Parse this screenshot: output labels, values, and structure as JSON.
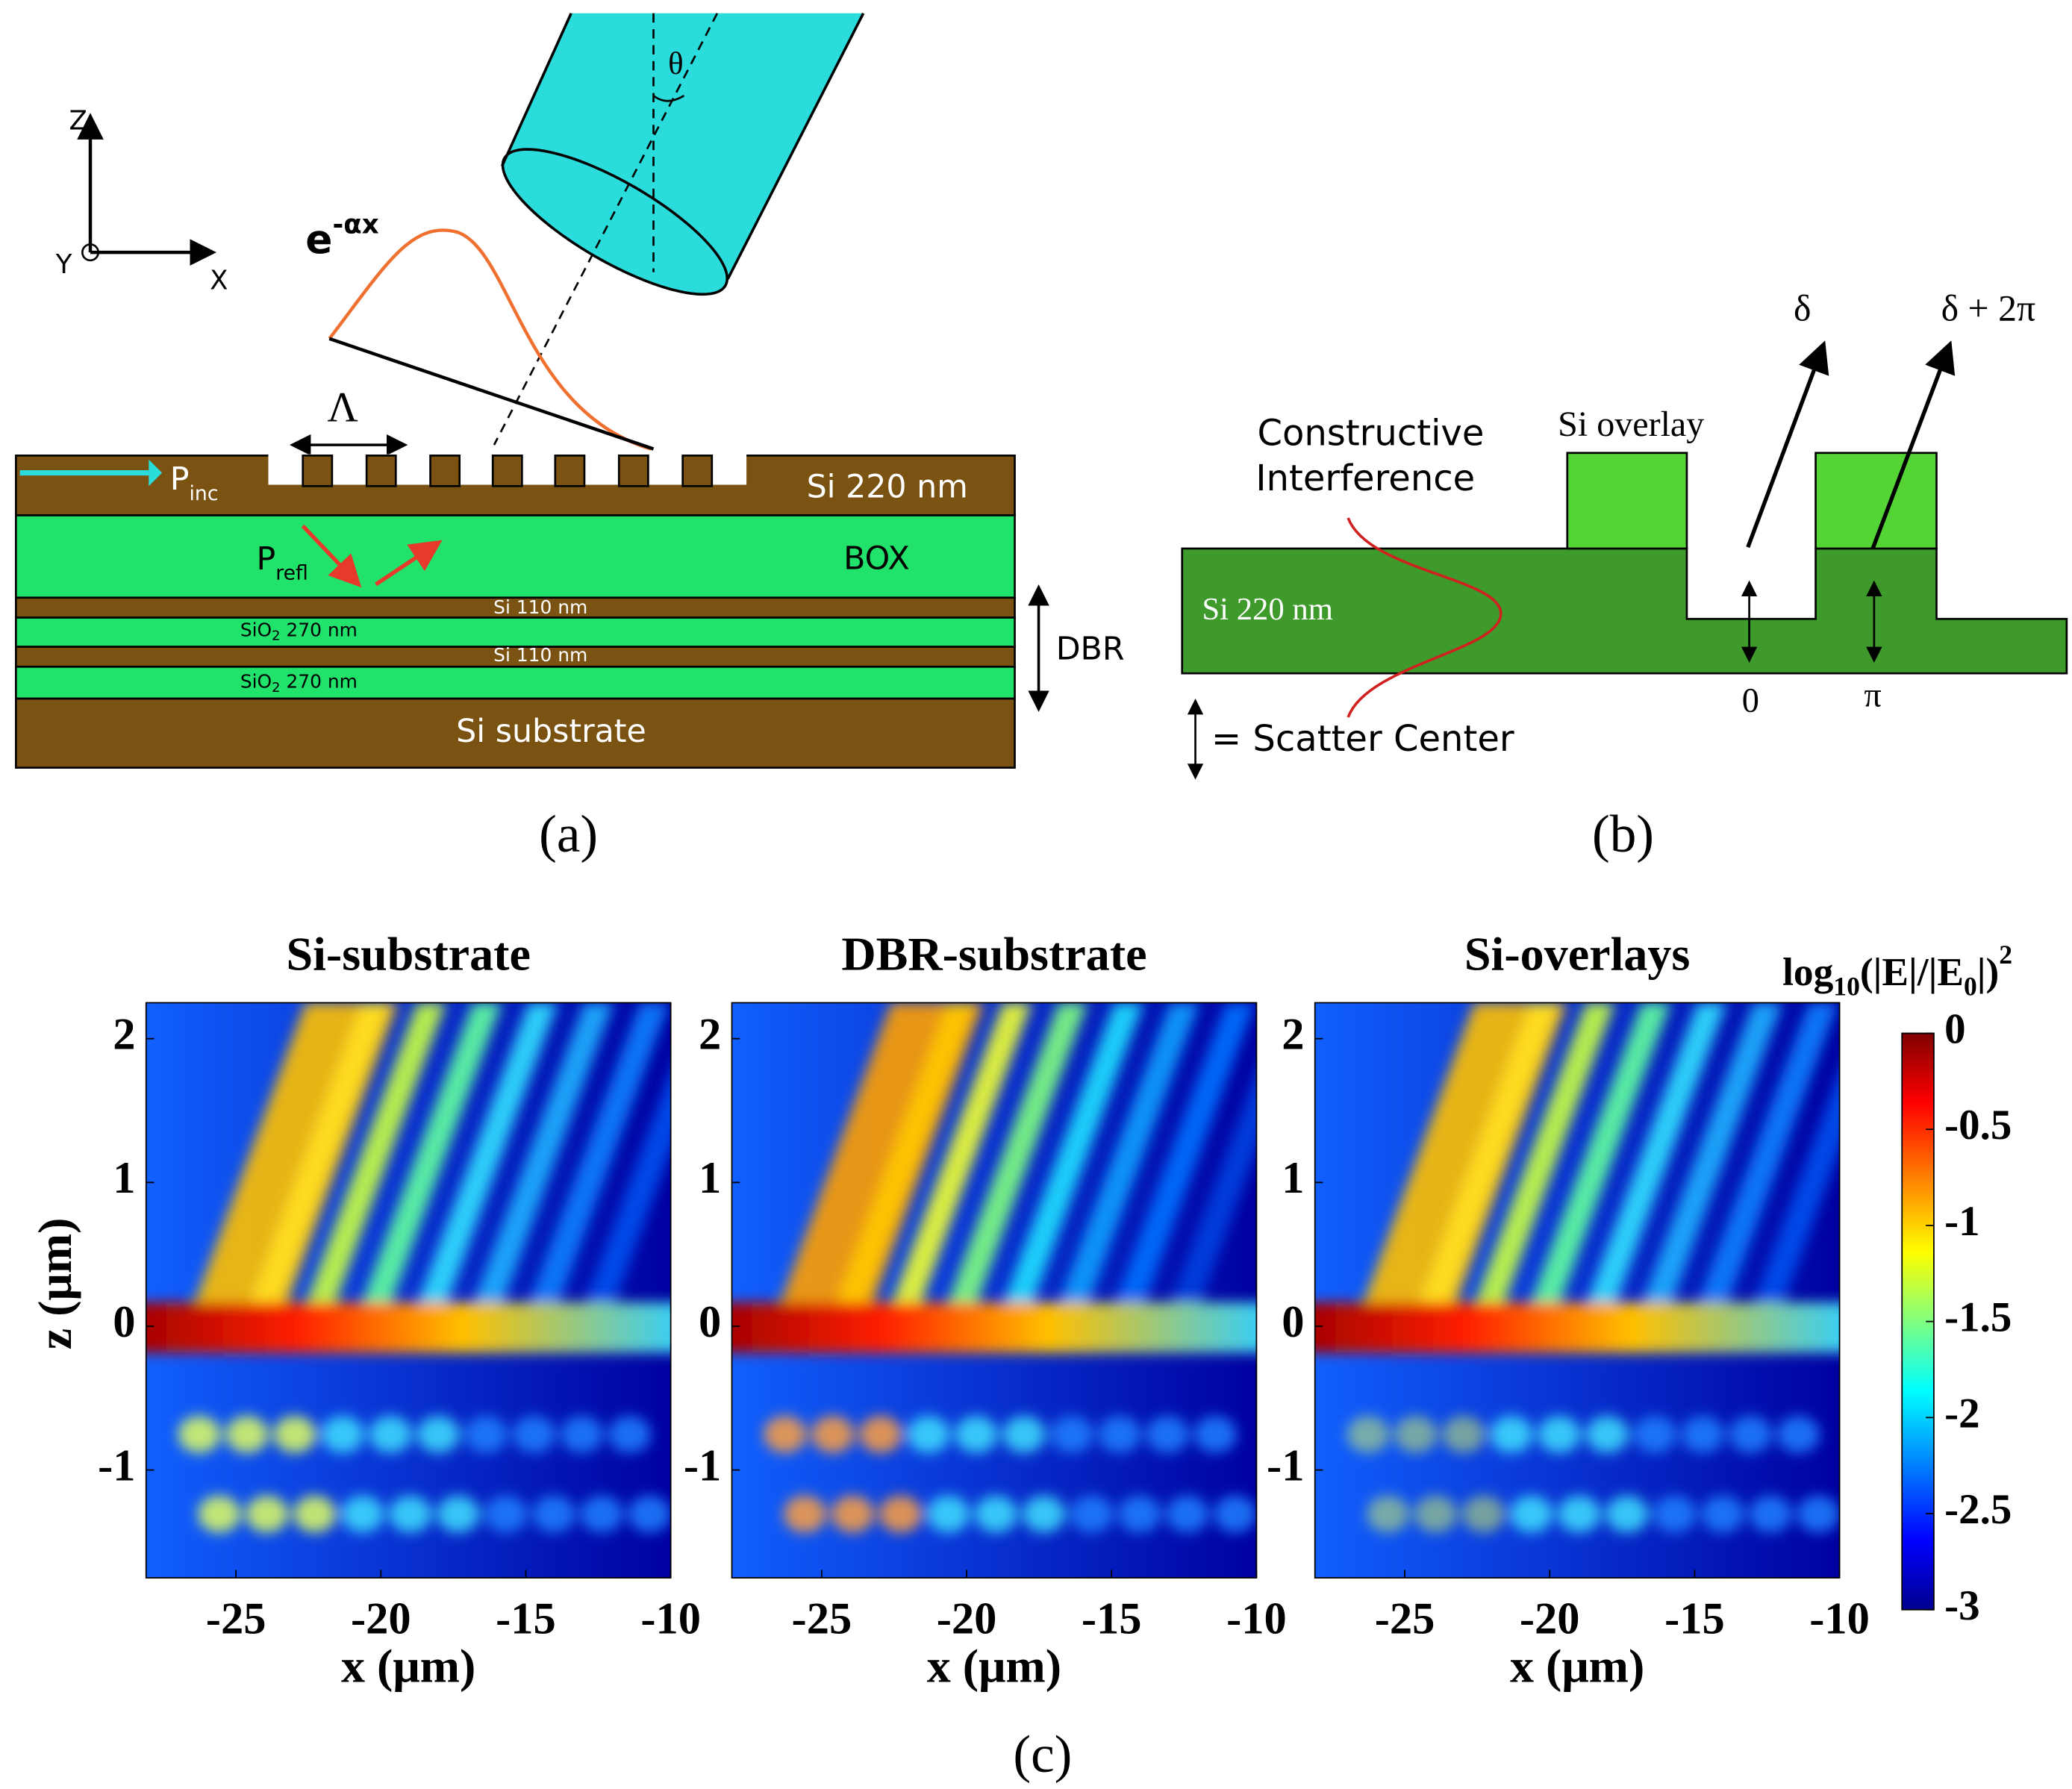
{
  "panel_a": {
    "label": "(a)",
    "axes": {
      "z": "Z",
      "x": "X",
      "y": "Y"
    },
    "angle": "θ",
    "decay": {
      "base": "e",
      "exponent": "-αx"
    },
    "period": "Λ",
    "p_inc": {
      "base": "P",
      "sub": "inc"
    },
    "p_refl": {
      "base": "P",
      "sub": "refl"
    },
    "layers": {
      "si_top": "Si 220 nm",
      "box": "BOX",
      "si_110_1": "Si 110 nm",
      "sio2_1": {
        "base": "SiO",
        "sub": "2",
        "rest": " 270 nm"
      },
      "si_110_2": "Si 110 nm",
      "sio2_2": {
        "base": "SiO",
        "sub": "2",
        "rest": " 270 nm"
      },
      "substrate": "Si substrate"
    },
    "dbr": "DBR"
  },
  "panel_b": {
    "label": "(b)",
    "constructive": [
      "Constructive",
      "Interference"
    ],
    "overlay": "Si overlay",
    "delta": "δ",
    "delta_2pi": "δ + 2π",
    "si": "Si  220 nm",
    "phase_0": "0",
    "phase_pi": "π",
    "legend": "= Scatter Center"
  },
  "panel_c": {
    "label": "(c)"
  },
  "chart_data": [
    {
      "type": "heatmap",
      "title": "Si-substrate",
      "xlabel": "x (μm)",
      "ylabel": "z (μm)",
      "xlim": [
        -28.1,
        -10
      ],
      "ylim": [
        -1.75,
        2.25
      ],
      "xticks": [
        -25,
        -20,
        -15,
        -10
      ],
      "yticks": [
        2,
        1,
        0,
        -1
      ]
    },
    {
      "type": "heatmap",
      "title": "DBR-substrate",
      "xlabel": "x (μm)",
      "xlim": [
        -28.1,
        -10
      ],
      "ylim": [
        -1.75,
        2.25
      ],
      "xticks": [
        -25,
        -20,
        -15,
        -10
      ],
      "yticks": [
        2,
        1,
        0,
        -1
      ]
    },
    {
      "type": "heatmap",
      "title": "Si-overlays",
      "xlabel": "x (μm)",
      "xlim": [
        -28.1,
        -10
      ],
      "ylim": [
        -1.75,
        2.25
      ],
      "xticks": [
        -25,
        -20,
        -15,
        -10
      ],
      "yticks": [
        2,
        1,
        0,
        -1
      ]
    }
  ],
  "colorbar": {
    "label": {
      "base": "log",
      "sub1": "10",
      "mid": "(|E|/|E",
      "sub2": "0",
      "end": "|)",
      "sup": "2"
    },
    "lim": [
      -3,
      0
    ],
    "ticks": [
      0,
      -0.5,
      -1,
      -1.5,
      -2,
      -2.5,
      -3
    ]
  }
}
